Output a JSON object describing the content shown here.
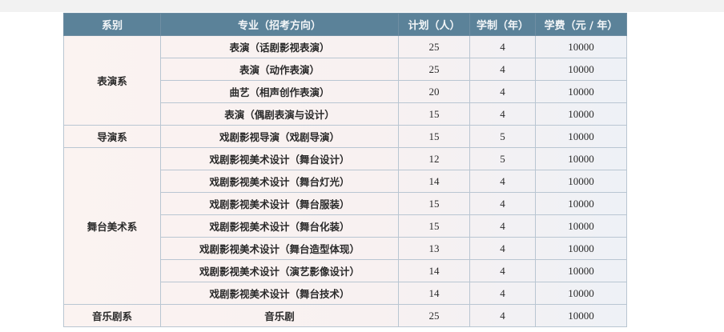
{
  "table": {
    "headers": [
      "系别",
      "专业（招考方向）",
      "计划（人）",
      "学制（年）",
      "学费（元 / 年）"
    ],
    "groups": [
      {
        "department": "表演系",
        "rows": [
          {
            "major": "表演（话剧影视表演）",
            "plan": "25",
            "years": "4",
            "fee": "10000"
          },
          {
            "major": "表演（动作表演）",
            "plan": "25",
            "years": "4",
            "fee": "10000"
          },
          {
            "major": "曲艺（相声创作表演）",
            "plan": "20",
            "years": "4",
            "fee": "10000"
          },
          {
            "major": "表演（偶剧表演与设计）",
            "plan": "15",
            "years": "4",
            "fee": "10000"
          }
        ]
      },
      {
        "department": "导演系",
        "rows": [
          {
            "major": "戏剧影视导演（戏剧导演）",
            "plan": "15",
            "years": "5",
            "fee": "10000"
          }
        ]
      },
      {
        "department": "舞台美术系",
        "rows": [
          {
            "major": "戏剧影视美术设计（舞台设计）",
            "plan": "12",
            "years": "5",
            "fee": "10000"
          },
          {
            "major": "戏剧影视美术设计（舞台灯光）",
            "plan": "14",
            "years": "4",
            "fee": "10000"
          },
          {
            "major": "戏剧影视美术设计（舞台服装）",
            "plan": "15",
            "years": "4",
            "fee": "10000"
          },
          {
            "major": "戏剧影视美术设计（舞台化装）",
            "plan": "15",
            "years": "4",
            "fee": "10000"
          },
          {
            "major": "戏剧影视美术设计（舞台造型体现）",
            "plan": "13",
            "years": "4",
            "fee": "10000"
          },
          {
            "major": "戏剧影视美术设计（演艺影像设计）",
            "plan": "14",
            "years": "4",
            "fee": "10000"
          },
          {
            "major": "戏剧影视美术设计（舞台技术）",
            "plan": "14",
            "years": "4",
            "fee": "10000"
          }
        ]
      },
      {
        "department": "音乐剧系",
        "rows": [
          {
            "major": "音乐剧",
            "plan": "25",
            "years": "4",
            "fee": "10000"
          }
        ]
      }
    ]
  },
  "colors": {
    "header_bg": "#5b8299",
    "header_text": "#f3f6f8",
    "grid": "#b9c6d2"
  }
}
